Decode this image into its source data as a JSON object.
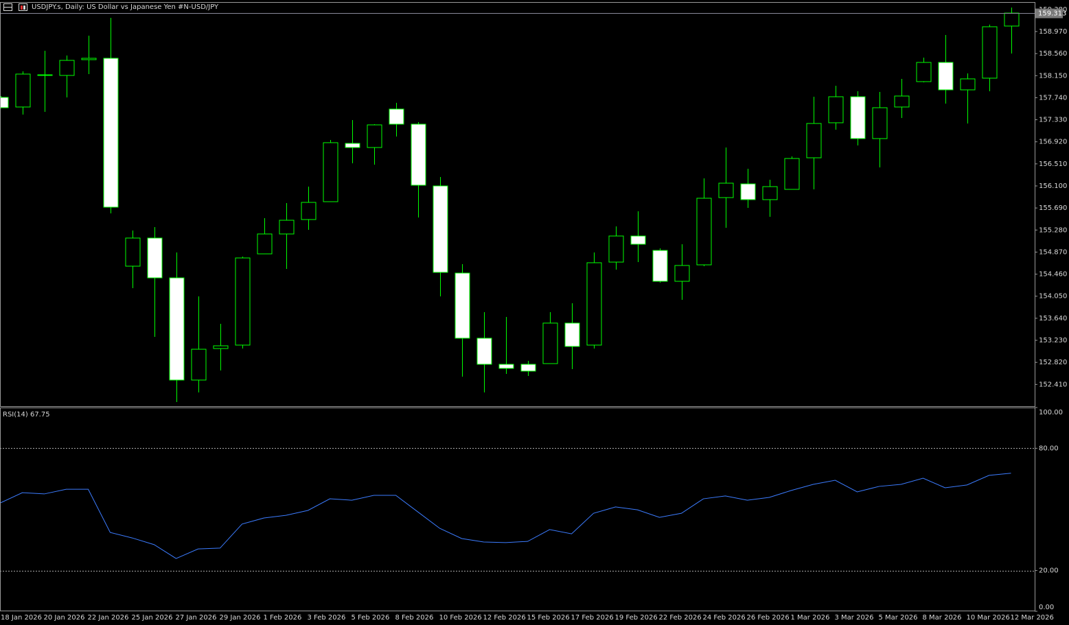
{
  "chart_data": [
    {
      "type": "candlestick",
      "title": "USDJPY.s, Daily:  US Dollar vs  Japanese Yen #N-USD/JPY",
      "categories": [
        "18 Jan 2026",
        null,
        "20 Jan 2026",
        null,
        "22 Jan 2026",
        null,
        "25 Jan 2026",
        null,
        "27 Jan 2026",
        null,
        "29 Jan 2026",
        null,
        "1 Feb 2026",
        null,
        "3 Feb 2026",
        null,
        "5 Feb 2026",
        null,
        "8 Feb 2026",
        null,
        "10 Feb 2026",
        null,
        "12 Feb 2026",
        null,
        "15 Feb 2026",
        null,
        "17 Feb 2026",
        null,
        "19 Feb 2026",
        null,
        "22 Feb 2026",
        null,
        "24 Feb 2026",
        null,
        "26 Feb 2026",
        null,
        "1 Mar 2026",
        null,
        "3 Mar 2026",
        null,
        "5 Mar 2026",
        null,
        "8 Mar 2026",
        null,
        "10 Mar 2026",
        null,
        "12 Mar 2026"
      ],
      "open": [
        157.746,
        157.567,
        158.154,
        158.154,
        158.447,
        158.473,
        154.608,
        155.131,
        154.391,
        152.491,
        153.077,
        153.141,
        154.837,
        155.207,
        155.475,
        155.807,
        156.891,
        156.814,
        157.529,
        157.248,
        156.1,
        154.48,
        153.269,
        152.784,
        152.784,
        152.797,
        153.55,
        153.141,
        154.684,
        155.169,
        154.901,
        154.327,
        154.633,
        155.883,
        156.138,
        155.845,
        156.036,
        156.623,
        157.274,
        157.758,
        156.98,
        157.567,
        158.039,
        158.396,
        157.886,
        158.103,
        159.072
      ],
      "high": [
        157.771,
        158.23,
        158.613,
        158.524,
        158.893,
        159.225,
        155.271,
        155.335,
        154.863,
        154.047,
        153.537,
        154.786,
        155.501,
        155.781,
        156.087,
        156.955,
        157.325,
        157.248,
        157.644,
        157.286,
        156.266,
        154.646,
        153.753,
        153.664,
        152.848,
        153.753,
        153.919,
        154.863,
        155.348,
        155.628,
        154.94,
        155.016,
        156.24,
        156.814,
        156.419,
        156.215,
        156.649,
        157.758,
        157.962,
        157.86,
        157.848,
        158.09,
        158.485,
        158.906,
        158.192,
        159.098,
        159.416
      ],
      "low": [
        157.541,
        157.427,
        157.478,
        157.746,
        158.179,
        155.59,
        154.2,
        153.294,
        152.083,
        152.261,
        152.669,
        153.077,
        154.837,
        154.557,
        155.284,
        155.807,
        156.521,
        156.496,
        157.018,
        155.513,
        154.047,
        152.554,
        152.261,
        152.606,
        152.567,
        152.797,
        152.695,
        153.077,
        154.544,
        154.684,
        154.302,
        153.983,
        154.608,
        155.322,
        155.692,
        155.526,
        156.036,
        156.036,
        157.146,
        156.853,
        156.444,
        157.363,
        158.026,
        157.631,
        157.261,
        157.86,
        158.562
      ],
      "close": [
        157.554,
        158.179,
        158.166,
        158.434,
        158.473,
        155.705,
        155.131,
        154.391,
        152.491,
        153.064,
        153.128,
        154.761,
        155.207,
        155.462,
        155.794,
        156.904,
        156.814,
        157.235,
        157.248,
        156.113,
        154.493,
        153.269,
        152.784,
        152.708,
        152.657,
        153.55,
        153.116,
        154.672,
        155.169,
        155.016,
        154.327,
        154.621,
        155.871,
        156.151,
        155.845,
        156.087,
        156.61,
        157.261,
        157.758,
        156.98,
        157.554,
        157.771,
        158.396,
        157.886,
        158.09,
        159.059,
        159.313
      ],
      "up_color": "#000000",
      "down_color": "#ffffff",
      "wick_color": "#00ff00",
      "ylim": [
        152.006,
        159.518
      ],
      "yticks": [
        {
          "value": 152.41,
          "label": "152.410"
        },
        {
          "value": 152.82,
          "label": "152.820"
        },
        {
          "value": 153.23,
          "label": "153.230"
        },
        {
          "value": 153.64,
          "label": "153.640"
        },
        {
          "value": 154.05,
          "label": "154.050"
        },
        {
          "value": 154.46,
          "label": "154.460"
        },
        {
          "value": 154.87,
          "label": "154.870"
        },
        {
          "value": 155.28,
          "label": "155.280"
        },
        {
          "value": 155.69,
          "label": "155.690"
        },
        {
          "value": 156.1,
          "label": "156.100"
        },
        {
          "value": 156.51,
          "label": "156.510"
        },
        {
          "value": 156.92,
          "label": "156.920"
        },
        {
          "value": 157.33,
          "label": "157.330"
        },
        {
          "value": 157.74,
          "label": "157.740"
        },
        {
          "value": 158.15,
          "label": "158.150"
        },
        {
          "value": 158.56,
          "label": "158.560"
        },
        {
          "value": 158.97,
          "label": "158.970"
        },
        {
          "value": 159.38,
          "label": "159.380"
        }
      ],
      "price_line": {
        "value": 159.313,
        "label": "159.313"
      }
    },
    {
      "type": "line",
      "title": "RSI(14) 67.75",
      "values": [
        53.2,
        58.2,
        57.6,
        59.9,
        59.9,
        38.7,
        36.0,
        32.7,
        25.9,
        30.6,
        31.0,
        42.8,
        45.8,
        47.1,
        49.5,
        55.2,
        54.5,
        56.9,
        56.9,
        48.8,
        40.7,
        35.7,
        34.0,
        33.7,
        34.3,
        40.1,
        38.0,
        48.1,
        51.2,
        49.8,
        46.1,
        48.1,
        55.2,
        56.6,
        54.5,
        55.9,
        59.3,
        62.3,
        64.3,
        58.6,
        61.3,
        62.3,
        65.3,
        60.6,
        62.0,
        66.7,
        67.75
      ],
      "color": "#3c7cff",
      "ylim": [
        0,
        100
      ],
      "yticks": [
        {
          "value": 0,
          "label": "0.00"
        },
        {
          "value": 20,
          "label": "20.00"
        },
        {
          "value": 80,
          "label": "80.00"
        },
        {
          "value": 100,
          "label": "100.00"
        }
      ],
      "levels": [
        20,
        80
      ]
    }
  ]
}
